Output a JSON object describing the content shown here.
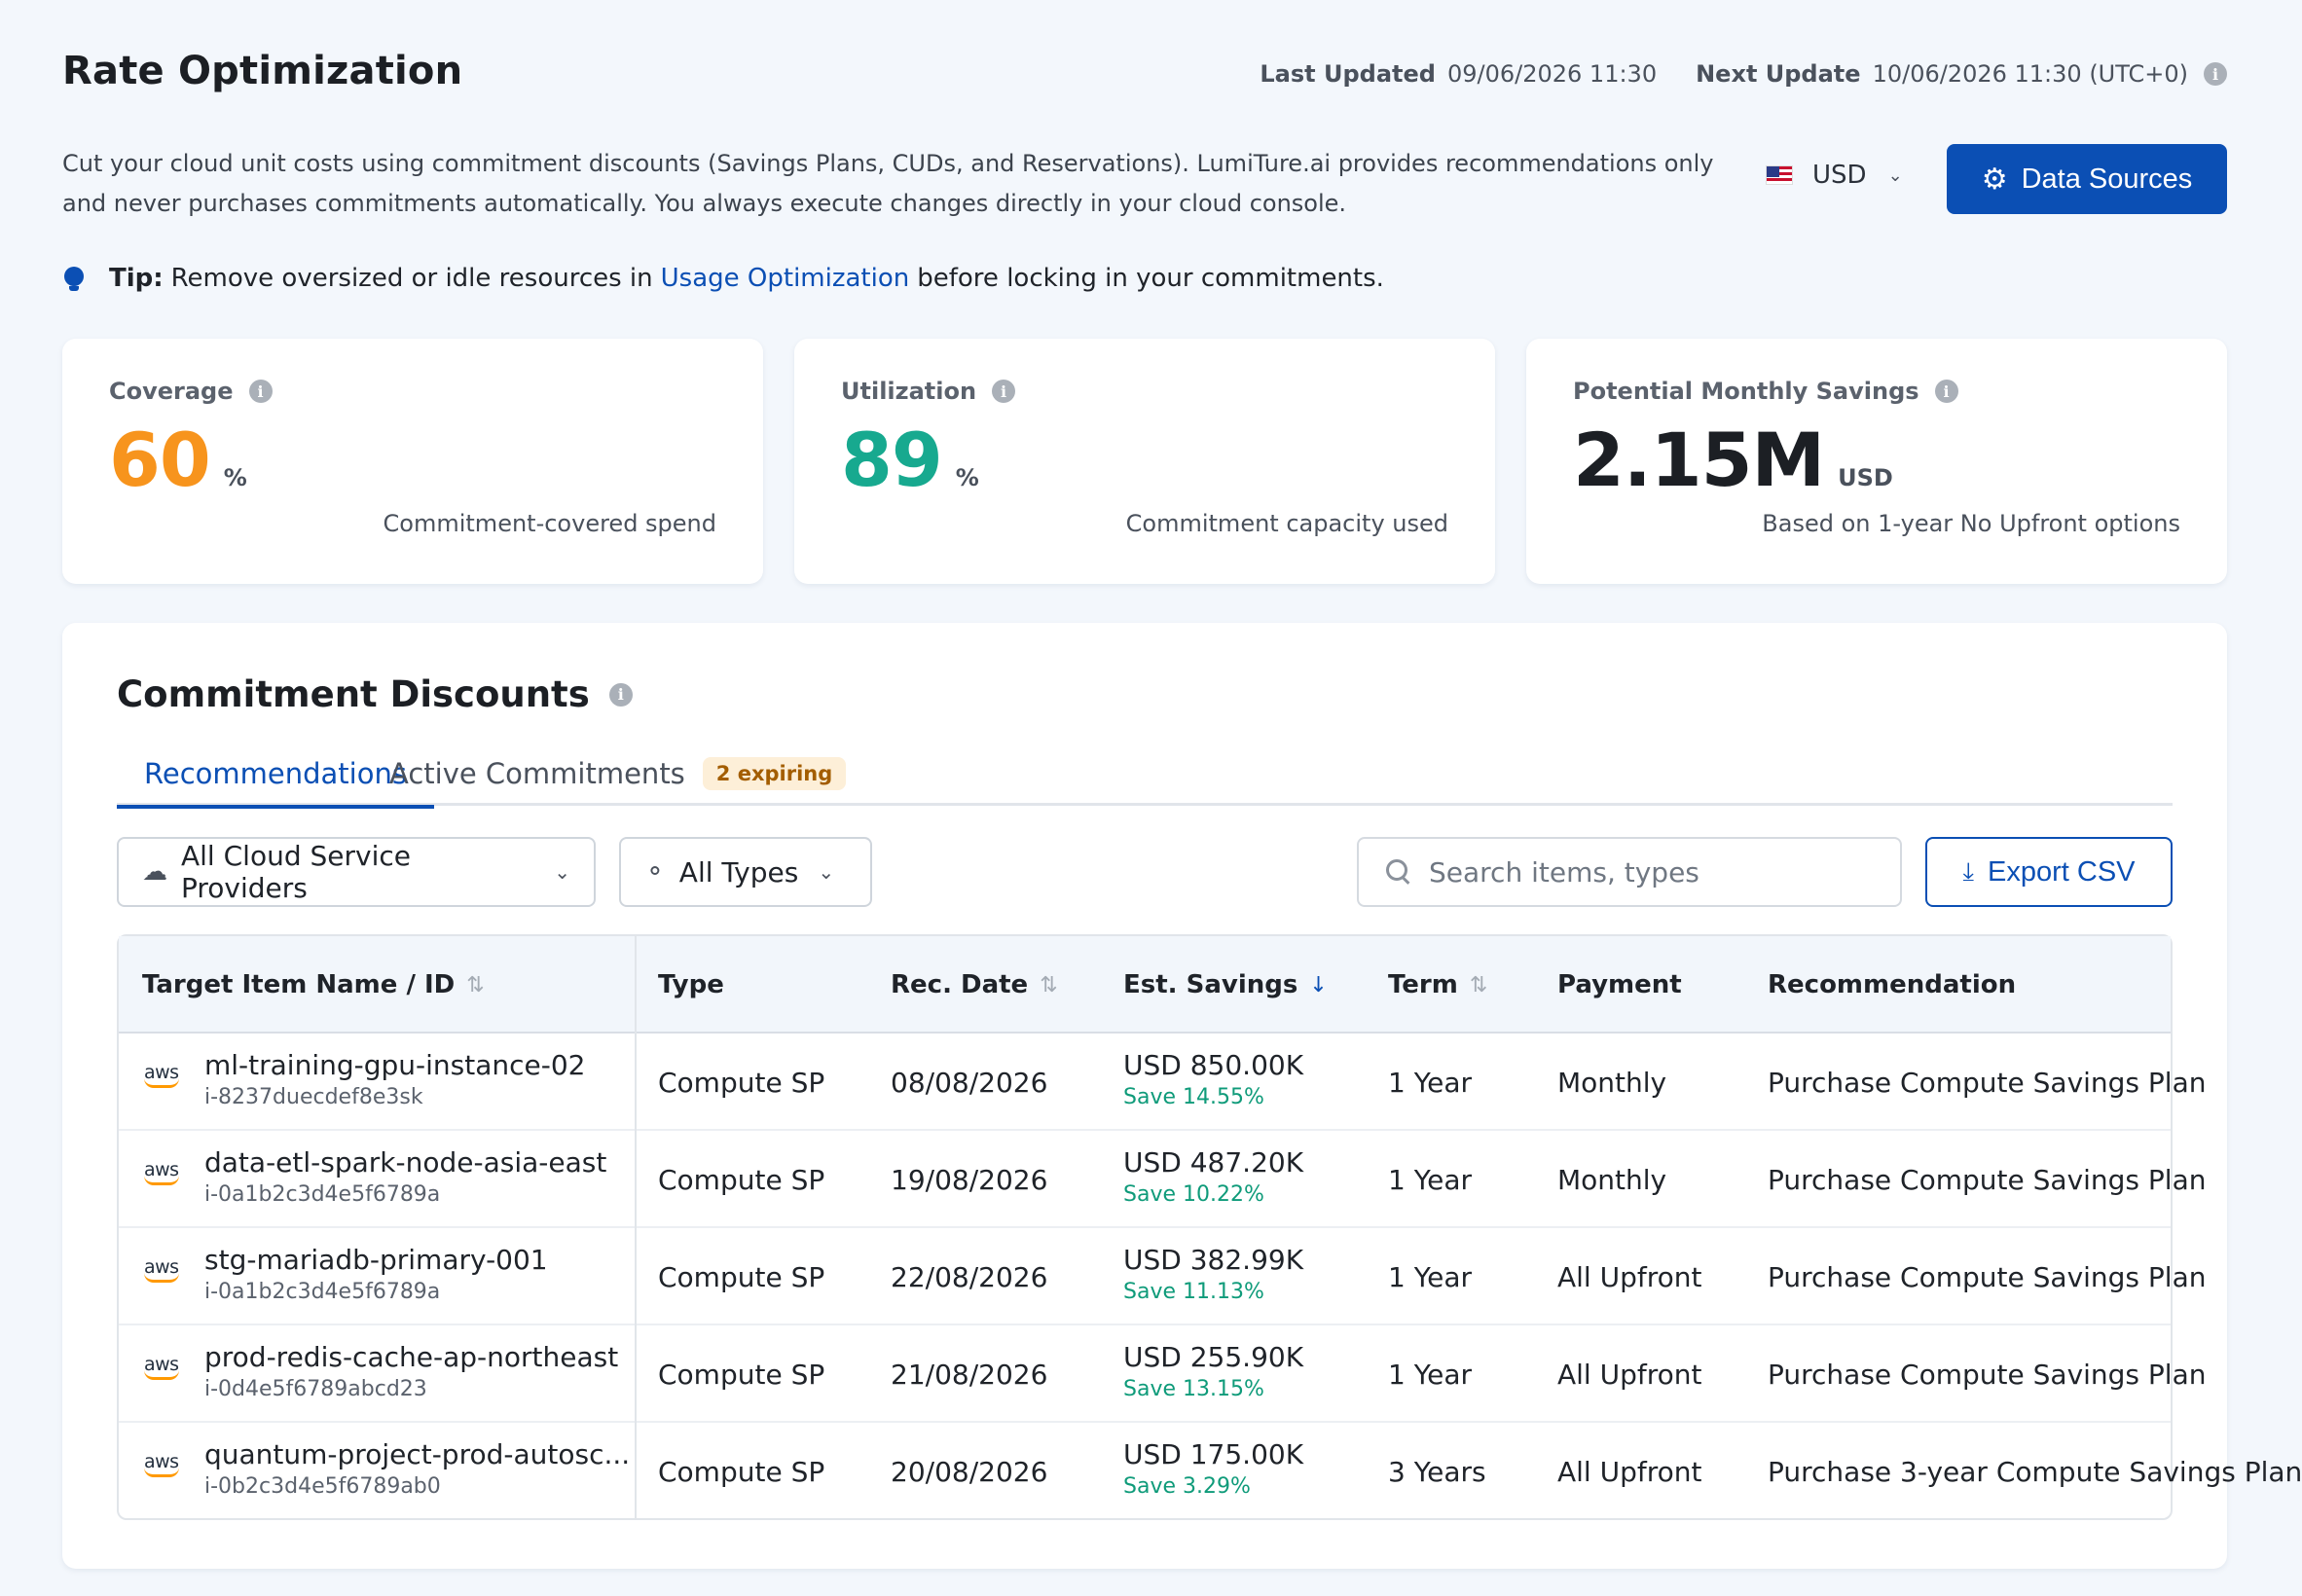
{
  "header": {
    "title": "Rate Optimization",
    "last_updated_label": "Last Updated",
    "last_updated_value": "09/06/2026 11:30",
    "next_update_label": "Next Update",
    "next_update_value": "10/06/2026 11:30 (UTC+0)"
  },
  "description": "Cut your cloud unit costs using commitment discounts (Savings Plans, CUDs, and Reservations). LumiTure.ai provides recommendations only and never purchases commitments automatically. You always execute changes directly in your cloud console.",
  "currency": {
    "value": "USD"
  },
  "data_sources_button": "Data Sources",
  "tip": {
    "label": "Tip:",
    "before": "Remove oversized or idle resources in",
    "link": "Usage Optimization",
    "after": "before locking in your commitments."
  },
  "kpis": [
    {
      "title": "Coverage",
      "value": "60",
      "unit": "%",
      "sub": "Commitment-covered spend",
      "color": "#f7941d"
    },
    {
      "title": "Utilization",
      "value": "89",
      "unit": "%",
      "sub": "Commitment capacity used",
      "color": "#17a98f"
    },
    {
      "title": "Potential Monthly Savings",
      "value": "2.15M",
      "unit": "USD",
      "sub": "Based on 1-year No Upfront options",
      "color": "#1c1f24"
    }
  ],
  "panel": {
    "title": "Commitment Discounts",
    "tabs": [
      {
        "label": "Recommendations"
      },
      {
        "label": "Active Commitments",
        "badge": "2 expiring"
      }
    ],
    "filters": {
      "provider": "All Cloud Service Providers",
      "type": "All Types"
    },
    "search": {
      "placeholder": "Search items, types"
    },
    "export_button": "Export CSV",
    "columns": [
      "Target Item Name / ID",
      "Type",
      "Rec. Date",
      "Est. Savings",
      "Term",
      "Payment",
      "Recommendation"
    ],
    "rows": [
      {
        "logo": "aws",
        "name": "ml-training-gpu-instance-02",
        "id": "i-8237duecdef8e3sk",
        "type": "Compute SP",
        "date": "08/08/2026",
        "savings": "USD 850.00K",
        "save_pct": "Save 14.55%",
        "term": "1 Year",
        "payment": "Monthly",
        "recommendation": "Purchase Compute Savings Plan"
      },
      {
        "logo": "aws",
        "name": "data-etl-spark-node-asia-east",
        "id": "i-0a1b2c3d4e5f6789a",
        "type": "Compute SP",
        "date": "19/08/2026",
        "savings": "USD 487.20K",
        "save_pct": "Save 10.22%",
        "term": "1 Year",
        "payment": "Monthly",
        "recommendation": "Purchase Compute Savings Plan"
      },
      {
        "logo": "aws",
        "name": "stg-mariadb-primary-001",
        "id": "i-0a1b2c3d4e5f6789a",
        "type": "Compute SP",
        "date": "22/08/2026",
        "savings": "USD 382.99K",
        "save_pct": "Save 11.13%",
        "term": "1 Year",
        "payment": "All Upfront",
        "recommendation": "Purchase Compute Savings Plan"
      },
      {
        "logo": "aws",
        "name": "prod-redis-cache-ap-northeast",
        "id": "i-0d4e5f6789abcd23",
        "type": "Compute SP",
        "date": "21/08/2026",
        "savings": "USD 255.90K",
        "save_pct": "Save 13.15%",
        "term": "1 Year",
        "payment": "All Upfront",
        "recommendation": "Purchase Compute Savings Plan"
      },
      {
        "logo": "aws",
        "name": "quantum-project-prod-autosc...",
        "id": "i-0b2c3d4e5f6789ab0",
        "type": "Compute SP",
        "date": "20/08/2026",
        "savings": "USD 175.00K",
        "save_pct": "Save 3.29%",
        "term": "3 Years",
        "payment": "All Upfront",
        "recommendation": "Purchase 3-year Compute Savings Plan"
      }
    ]
  },
  "colors": {
    "primary": "#0b4fb4",
    "savings_green": "#0f9b7a",
    "badge_bg": "#fdefd8",
    "badge_text": "#a35d00"
  }
}
